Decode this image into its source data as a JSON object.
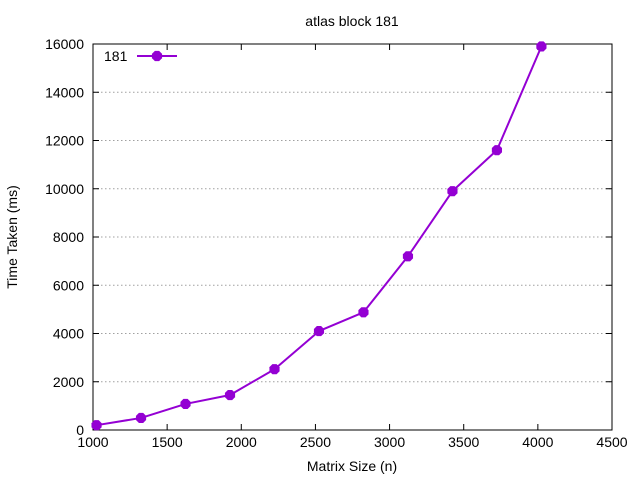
{
  "chart_data": {
    "type": "line",
    "title": "atlas block 181",
    "xlabel": "Matrix Size (n)",
    "ylabel": "Time Taken (ms)",
    "xlim": [
      1000,
      4500
    ],
    "ylim": [
      0,
      16000
    ],
    "xticks": [
      1000,
      1500,
      2000,
      2500,
      3000,
      3500,
      4000,
      4500
    ],
    "yticks": [
      0,
      2000,
      4000,
      6000,
      8000,
      10000,
      12000,
      14000,
      16000
    ],
    "grid": true,
    "grid_axis": "y",
    "legend_position": "top-left",
    "series": [
      {
        "name": "181",
        "color": "#9400d3",
        "marker": "octagon",
        "x": [
          1024,
          1324,
          1624,
          1924,
          2224,
          2524,
          2824,
          3124,
          3424,
          3724,
          4024
        ],
        "y": [
          200,
          500,
          1080,
          1450,
          2520,
          4100,
          4880,
          7200,
          9900,
          11600,
          15900
        ]
      }
    ]
  }
}
